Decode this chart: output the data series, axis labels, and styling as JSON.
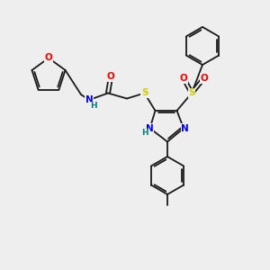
{
  "bg_color": "#eeeeee",
  "bond_color": "#1a1a1a",
  "figsize": [
    3.0,
    3.0
  ],
  "dpi": 100,
  "atom_colors": {
    "O": "#ff0000",
    "N": "#0000ff",
    "S": "#cccc00",
    "H": "#008080",
    "C": "#1a1a1a"
  },
  "font_size": 7.5,
  "bond_lw": 1.3
}
